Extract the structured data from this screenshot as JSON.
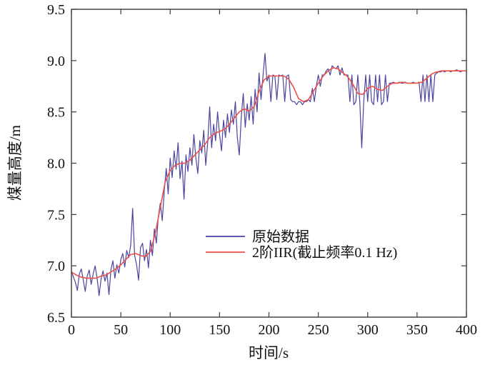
{
  "figure": {
    "background": "#ffffff",
    "axis_color": "#3a3a3a",
    "text_color": "#111111"
  },
  "chart_data": {
    "type": "line",
    "title": "",
    "xlabel": "时间/s",
    "ylabel": "煤量高度/m",
    "xlim": [
      0,
      400
    ],
    "ylim": [
      6.5,
      9.5
    ],
    "grid": false,
    "legend_position": "inside-lower-center",
    "xticks": [
      0,
      50,
      100,
      150,
      200,
      250,
      300,
      350,
      400
    ],
    "xtick_labels": [
      "0",
      "50",
      "100",
      "150",
      "200",
      "250",
      "300",
      "350",
      "400"
    ],
    "yticks": [
      6.5,
      7.0,
      7.5,
      8.0,
      8.5,
      9.0,
      9.5
    ],
    "ytick_labels": [
      "6.5",
      "7.0",
      "7.5",
      "8.0",
      "8.5",
      "9.0",
      "9.5"
    ],
    "series": [
      {
        "name": "原始数据",
        "color": "#4a44a0",
        "line_width": 1.2,
        "x_start": 0,
        "x_step": 2,
        "values": [
          6.95,
          6.89,
          6.84,
          6.76,
          6.92,
          6.97,
          6.86,
          6.75,
          6.9,
          6.96,
          6.82,
          6.92,
          7.0,
          6.88,
          6.71,
          6.87,
          6.95,
          6.85,
          6.93,
          6.72,
          6.96,
          7.05,
          6.88,
          7.01,
          6.93,
          7.06,
          7.12,
          6.99,
          7.15,
          7.08,
          7.2,
          7.56,
          7.1,
          7.01,
          6.86,
          7.18,
          7.22,
          7.05,
          7.16,
          6.98,
          7.25,
          7.1,
          7.36,
          7.22,
          7.48,
          7.61,
          7.44,
          7.73,
          7.95,
          7.7,
          8.05,
          7.86,
          8.12,
          7.94,
          8.2,
          7.85,
          8.02,
          7.65,
          8.08,
          7.92,
          8.15,
          7.98,
          8.28,
          8.05,
          7.9,
          8.22,
          8.1,
          8.32,
          7.98,
          8.2,
          8.55,
          8.15,
          8.38,
          8.22,
          8.5,
          8.28,
          8.12,
          8.42,
          8.25,
          8.48,
          8.3,
          8.52,
          8.38,
          8.6,
          8.25,
          8.08,
          8.45,
          8.68,
          8.35,
          8.58,
          8.42,
          8.65,
          8.38,
          8.72,
          8.5,
          8.88,
          8.62,
          8.85,
          9.07,
          8.8,
          8.86,
          8.6,
          8.86,
          8.85,
          8.62,
          8.86,
          8.85,
          8.86,
          8.6,
          8.85,
          8.86,
          8.62,
          8.6,
          8.6,
          8.57,
          8.6,
          8.6,
          8.57,
          8.6,
          8.6,
          8.62,
          8.6,
          8.73,
          8.6,
          8.75,
          8.86,
          8.75,
          8.86,
          8.86,
          8.9,
          8.92,
          8.86,
          8.95,
          8.93,
          8.92,
          8.95,
          8.86,
          8.93,
          8.86,
          8.86,
          8.86,
          8.6,
          8.86,
          8.57,
          8.6,
          8.86,
          8.6,
          8.15,
          8.6,
          8.86,
          8.6,
          8.86,
          8.6,
          8.57,
          8.86,
          8.6,
          8.86,
          8.57,
          8.6,
          8.86,
          8.6,
          8.78,
          8.78,
          8.79,
          8.78,
          8.78,
          8.79,
          8.78,
          8.78,
          8.79,
          8.78,
          8.78,
          8.78,
          8.79,
          8.78,
          8.78,
          8.79,
          8.6,
          8.86,
          8.6,
          8.86,
          8.6,
          8.86,
          8.6,
          8.86,
          8.88,
          8.89,
          8.89,
          8.9,
          8.89,
          8.9,
          8.9,
          8.89,
          8.9,
          8.9,
          8.91,
          8.9,
          8.89,
          8.9,
          8.9,
          8.9
        ]
      },
      {
        "name": "2阶IIR(截止频率0.1 Hz)",
        "color": "#ee4f45",
        "line_width": 1.6,
        "x_start": 0,
        "x_step": 5,
        "values": [
          6.94,
          6.91,
          6.89,
          6.88,
          6.88,
          6.88,
          6.9,
          6.91,
          6.94,
          6.97,
          7.01,
          7.06,
          7.11,
          7.12,
          7.1,
          7.09,
          7.14,
          7.32,
          7.57,
          7.82,
          7.93,
          7.98,
          8.0,
          8.0,
          8.03,
          8.08,
          8.13,
          8.18,
          8.25,
          8.29,
          8.31,
          8.33,
          8.38,
          8.44,
          8.5,
          8.53,
          8.51,
          8.55,
          8.7,
          8.81,
          8.85,
          8.85,
          8.85,
          8.85,
          8.82,
          8.74,
          8.63,
          8.6,
          8.62,
          8.7,
          8.78,
          8.85,
          8.9,
          8.93,
          8.92,
          8.88,
          8.84,
          8.77,
          8.68,
          8.67,
          8.73,
          8.75,
          8.72,
          8.71,
          8.75,
          8.78,
          8.78,
          8.79,
          8.78,
          8.78,
          8.78,
          8.79,
          8.83,
          8.87,
          8.89,
          8.9,
          8.9,
          8.9,
          8.9,
          8.9,
          8.9
        ]
      }
    ]
  }
}
